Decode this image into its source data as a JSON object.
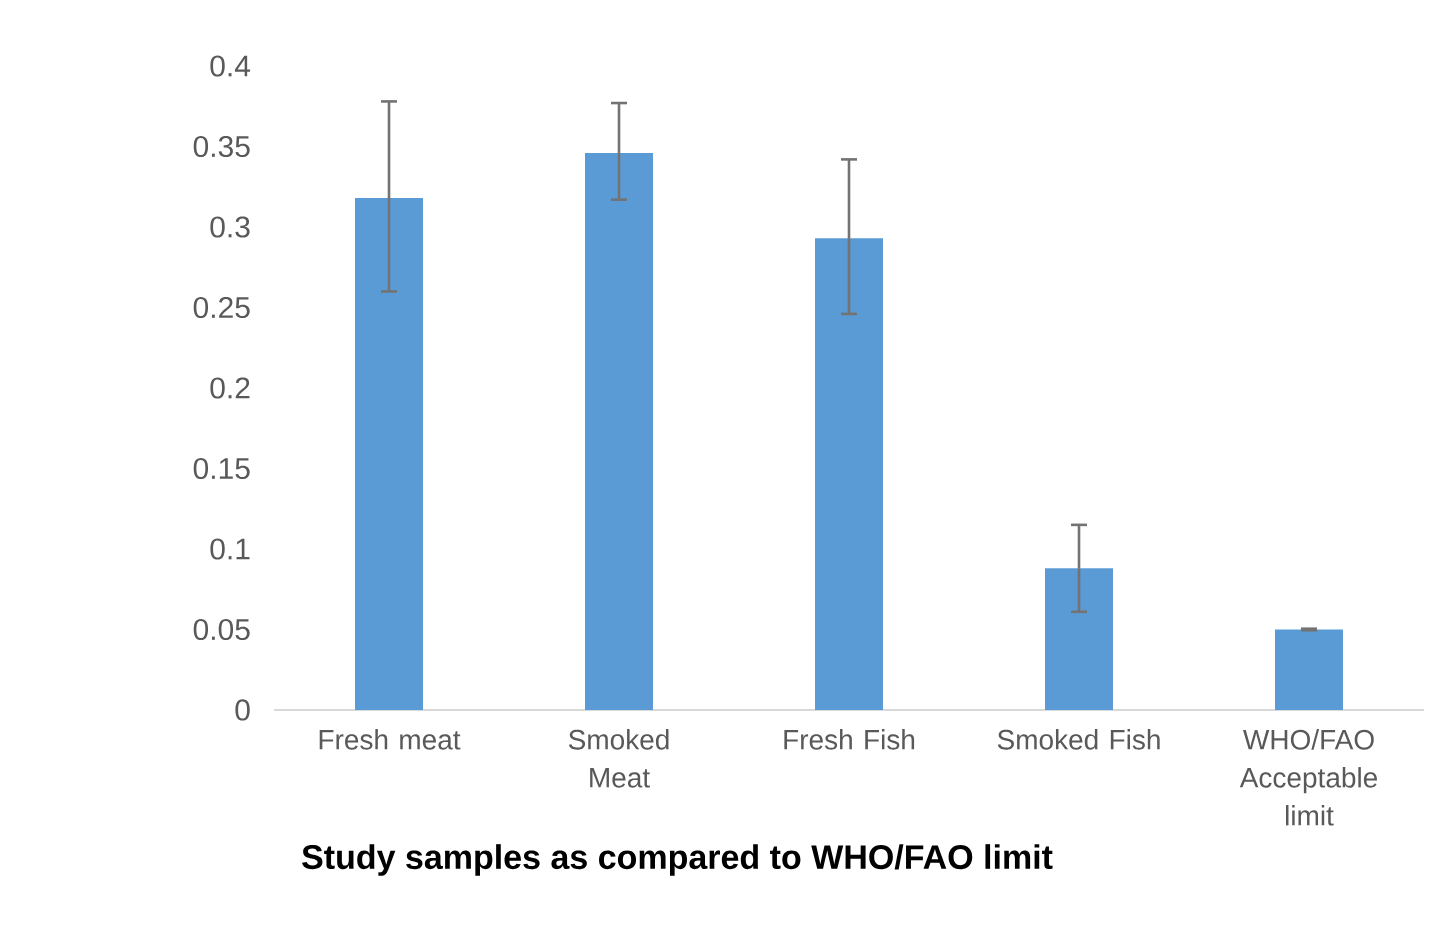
{
  "chart_data": {
    "type": "bar",
    "title": "Study samples as compared to WHO/FAO limit",
    "categories": [
      "Fresh meat",
      "Smoked Meat",
      "Fresh Fish",
      "Smoked Fish",
      "WHO/FAO Acceptable limit"
    ],
    "values": [
      0.318,
      0.346,
      0.293,
      0.088,
      0.05
    ],
    "errors": [
      [
        0.26,
        0.378
      ],
      [
        0.317,
        0.377
      ],
      [
        0.246,
        0.342
      ],
      [
        0.061,
        0.115
      ],
      [
        0.0495,
        0.0505
      ]
    ],
    "color": "#5b9bd5",
    "ylim": [
      0,
      0.4
    ],
    "yticks": [
      0,
      0.05,
      0.1,
      0.15,
      0.2,
      0.25,
      0.3,
      0.35,
      0.4
    ]
  }
}
